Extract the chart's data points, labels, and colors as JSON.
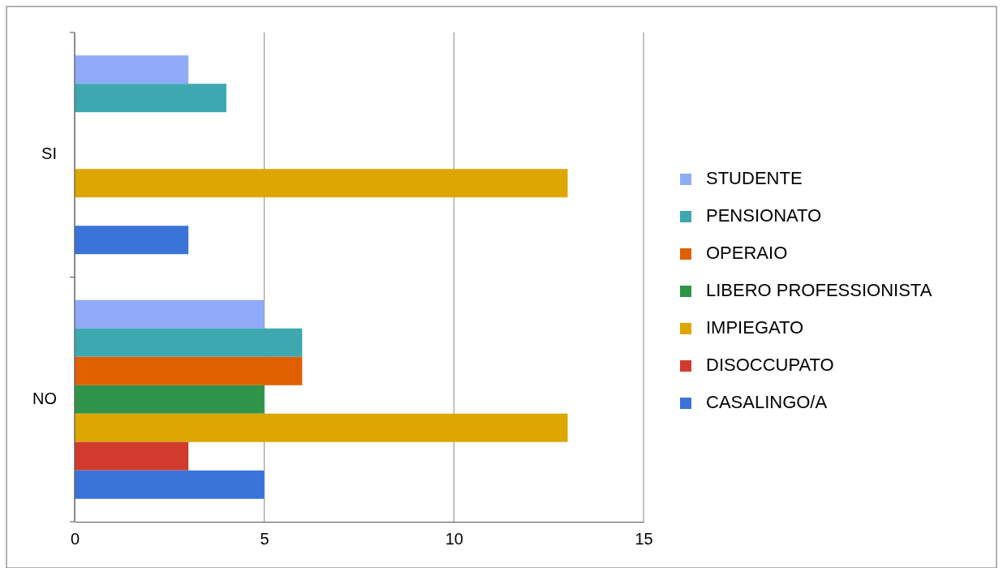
{
  "chart_data": {
    "type": "bar",
    "orientation": "horizontal",
    "categories": [
      "SI",
      "NO"
    ],
    "series": [
      {
        "name": "STUDENTE",
        "color": "#8faaf7",
        "values": [
          3,
          5
        ]
      },
      {
        "name": "PENSIONATO",
        "color": "#3da8b0",
        "values": [
          4,
          6
        ]
      },
      {
        "name": "OPERAIO",
        "color": "#e06000",
        "values": [
          null,
          6
        ]
      },
      {
        "name": "LIBERO PROFESSIONISTA",
        "color": "#2e9449",
        "values": [
          null,
          5
        ]
      },
      {
        "name": "IMPIEGATO",
        "color": "#dda600",
        "values": [
          13,
          13
        ]
      },
      {
        "name": "DISOCCUPATO",
        "color": "#d03b2e",
        "values": [
          null,
          3
        ]
      },
      {
        "name": "CASALINGO/A",
        "color": "#3a74d9",
        "values": [
          3,
          5
        ]
      }
    ],
    "xlim": [
      0,
      15
    ],
    "xticks": [
      0,
      5,
      10,
      15
    ],
    "grid": "x",
    "legend": "right"
  }
}
